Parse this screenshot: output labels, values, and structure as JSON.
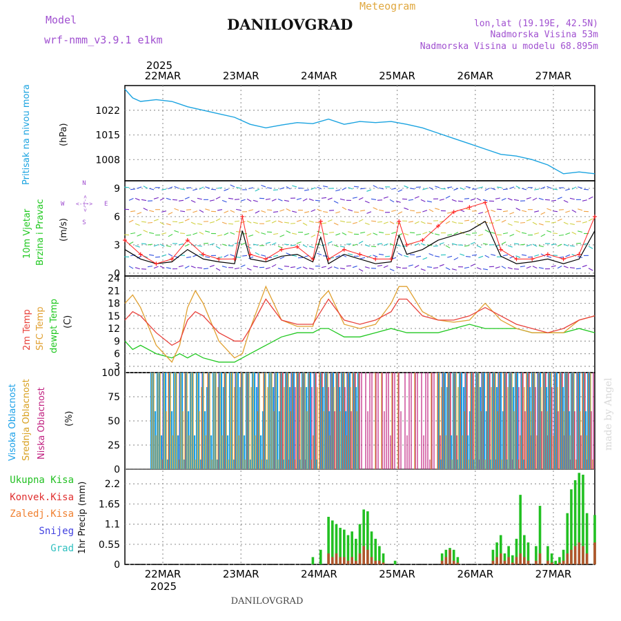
{
  "header": {
    "model_label": "Model",
    "model_name": "wrf-nmm_v3.9.1 e1km",
    "title": "DANILOVGRAD",
    "subtitle": "Meteogram",
    "coords": "lon,lat (19.19E, 42.5N)",
    "elevation": "Nadmorska Visina 53m",
    "model_elevation": "Nadmorska Visina u modelu 68.895m",
    "year_top": "2025",
    "year_bottom": "2025",
    "footer": "DANILOVGRAD",
    "watermark": "made by Angel"
  },
  "days": [
    "22MAR",
    "23MAR",
    "24MAR",
    "25MAR",
    "26MAR",
    "27MAR"
  ],
  "colors": {
    "pressure": "#1aa3e0",
    "wind_speed": "#000000",
    "gust": "#ff2020",
    "temp2m": "#e8403a",
    "sfc": "#e0a030",
    "dew": "#20c820",
    "cloud_high": "#1aa0e8",
    "cloud_mid": "#d8a020",
    "cloud_low": "#c02080",
    "precip_total": "#22c022",
    "precip_conv": "#e03030",
    "precip_frz": "#f08030",
    "precip_snow": "#4040e0",
    "precip_grad": "#30c0c0",
    "label_purple": "#a050d0",
    "label_orange": "#e0a840"
  },
  "panels": {
    "pressure": {
      "ylabel": "Pritisak na nivou mora",
      "unit": "(hPa)",
      "ticks": [
        "1022",
        "1015",
        "1008"
      ]
    },
    "wind": {
      "ylabel1": "10m Vjetar",
      "ylabel2": "Brzina i Pravac",
      "unit": "(m/s)",
      "ticks": [
        "0",
        "3",
        "6",
        "9"
      ],
      "compass_n": "N",
      "compass_s": "S",
      "compass_w": "W",
      "compass_e": "E",
      "compass_mid": "<-|->"
    },
    "temp": {
      "label_2m": "2m Temp",
      "label_sfc": "SFC Temp",
      "label_dew": "dewpt Temp",
      "unit": "(C)",
      "ticks": [
        "3",
        "6",
        "9",
        "12",
        "15",
        "18",
        "21",
        "24"
      ]
    },
    "cloud": {
      "label_high": "Visoka Oblacnost",
      "label_mid": "Srednja Oblacnost",
      "label_low": "Niska Oblacnost",
      "unit": "(%)",
      "ticks": [
        "0",
        "25",
        "50",
        "75",
        "100"
      ]
    },
    "precip": {
      "legend_total": "Ukupna Kisa",
      "legend_conv": "Konvek.Kisa",
      "legend_frz": "Zaledj.Kisa",
      "legend_snow": "Snijeg",
      "legend_grad": "Grad",
      "ylabel": "1hr Precip (mm)",
      "ticks": [
        "0",
        "0.55",
        "1.1",
        "1.65",
        "2.2"
      ]
    }
  },
  "chart_data": [
    {
      "type": "line",
      "title": "",
      "xlabel": "",
      "ylabel": "Pritisak na nivou mora (hPa)",
      "ylim": [
        1002,
        1029
      ],
      "x_days": [
        0,
        0.1,
        0.2,
        0.4,
        0.6,
        0.8,
        1.0,
        1.2,
        1.4,
        1.6,
        1.8,
        2.0,
        2.2,
        2.4,
        2.6,
        2.8,
        3.0,
        3.2,
        3.4,
        3.6,
        3.8,
        4.0,
        4.2,
        4.4,
        4.6,
        4.8,
        5.0,
        5.2,
        5.4,
        5.6,
        5.8,
        6.0
      ],
      "series": [
        {
          "values": [
            1028,
            1025.5,
            1024.5,
            1025,
            1024.5,
            1023,
            1022,
            1021,
            1020,
            1018,
            1017,
            1017.8,
            1018.5,
            1018.2,
            1019.5,
            1018,
            1018.8,
            1018.5,
            1018.8,
            1018,
            1017,
            1015.5,
            1014,
            1012.5,
            1011,
            1009.5,
            1009,
            1008,
            1006.5,
            1004,
            1004.5,
            1004
          ]
        }
      ]
    },
    {
      "type": "line",
      "title": "",
      "xlabel": "",
      "ylabel": "10m Vjetar Brzina i Pravac (m/s)",
      "ylim": [
        -0.3,
        9.8
      ],
      "x_days": [
        0,
        0.2,
        0.4,
        0.6,
        0.8,
        1.0,
        1.2,
        1.4,
        1.5,
        1.6,
        1.8,
        2.0,
        2.2,
        2.4,
        2.5,
        2.6,
        2.8,
        3.0,
        3.2,
        3.4,
        3.5,
        3.6,
        3.8,
        4.0,
        4.2,
        4.4,
        4.6,
        4.8,
        5.0,
        5.2,
        5.4,
        5.6,
        5.8,
        6.0
      ],
      "series": [
        {
          "name": "Brzina",
          "values": [
            2.5,
            1.5,
            1.0,
            1.2,
            2.5,
            1.5,
            1.2,
            1.0,
            4.5,
            1.5,
            1.2,
            1.8,
            2.0,
            1.2,
            3.8,
            1.0,
            2.0,
            1.5,
            1.0,
            1.2,
            4.0,
            2.0,
            2.5,
            3.5,
            4.0,
            4.5,
            5.5,
            1.8,
            1.0,
            1.2,
            1.5,
            1.0,
            1.5,
            4.5
          ]
        },
        {
          "name": "Udari",
          "values": [
            3.5,
            2.0,
            1.0,
            1.5,
            3.5,
            2.0,
            1.5,
            1.5,
            6.0,
            2.0,
            1.5,
            2.5,
            2.8,
            1.5,
            5.5,
            1.5,
            2.5,
            2.0,
            1.5,
            1.5,
            5.5,
            3.0,
            3.5,
            5.0,
            6.5,
            7.0,
            7.5,
            2.5,
            1.5,
            1.5,
            2.0,
            1.5,
            2.0,
            6.0
          ]
        }
      ]
    },
    {
      "type": "line",
      "title": "",
      "xlabel": "",
      "ylabel": "Temp (C)",
      "ylim": [
        1.5,
        24.5
      ],
      "x_days": [
        0,
        0.1,
        0.2,
        0.4,
        0.6,
        0.7,
        0.8,
        0.9,
        1.0,
        1.2,
        1.4,
        1.5,
        1.6,
        1.8,
        2.0,
        2.2,
        2.4,
        2.5,
        2.6,
        2.8,
        3.0,
        3.2,
        3.4,
        3.5,
        3.6,
        3.8,
        4.0,
        4.2,
        4.4,
        4.6,
        4.8,
        5.0,
        5.2,
        5.4,
        5.6,
        5.8,
        6.0
      ],
      "series": [
        {
          "name": "2m Temp",
          "values": [
            14,
            16,
            15,
            11,
            8,
            9,
            14,
            16,
            15,
            11,
            9,
            9,
            12,
            19,
            14,
            13,
            13,
            16,
            19,
            14,
            13,
            14,
            16,
            19,
            19,
            15,
            14,
            14,
            15,
            17,
            15,
            13,
            12,
            11,
            12,
            14,
            15
          ]
        },
        {
          "name": "SFC Temp",
          "values": [
            18,
            20,
            17,
            8,
            4,
            8,
            17,
            21,
            18,
            9,
            5,
            6,
            12,
            22,
            14,
            12.5,
            12.5,
            19,
            21,
            13,
            12,
            13,
            18,
            22,
            22,
            16,
            14,
            13.5,
            14,
            18,
            14,
            12,
            11,
            11,
            11,
            14,
            15
          ]
        },
        {
          "name": "dewpt Temp",
          "values": [
            9,
            7,
            8,
            6,
            5,
            6,
            5,
            6,
            5,
            4,
            4,
            5,
            6,
            8,
            10,
            11,
            11,
            12,
            12,
            10,
            10,
            11,
            12,
            11.5,
            11,
            11,
            11,
            12,
            13,
            12,
            12,
            12,
            11,
            11,
            11,
            12,
            11
          ]
        }
      ]
    },
    {
      "type": "bar",
      "title": "",
      "xlabel": "",
      "ylabel": "Oblacnost (%)",
      "ylim": [
        0,
        100
      ],
      "categories": [
        "22MAR",
        "23MAR",
        "24MAR",
        "25MAR",
        "26MAR",
        "27MAR"
      ],
      "series": [
        {
          "name": "Visoka Oblacnost",
          "values": [
            100,
            100,
            85,
            0,
            100,
            75
          ]
        },
        {
          "name": "Srednja Oblacnost",
          "values": [
            100,
            100,
            100,
            20,
            100,
            100
          ]
        },
        {
          "name": "Niska Oblacnost",
          "values": [
            20,
            25,
            80,
            80,
            70,
            100
          ]
        }
      ]
    },
    {
      "type": "bar",
      "title": "",
      "xlabel": "",
      "ylabel": "1hr Precip (mm)",
      "ylim": [
        0,
        2.6
      ],
      "x_days": [
        2.4,
        2.5,
        2.6,
        2.65,
        2.7,
        2.75,
        2.8,
        2.85,
        2.9,
        2.95,
        3.0,
        3.05,
        3.1,
        3.15,
        3.2,
        3.25,
        3.3,
        3.45,
        4.05,
        4.1,
        4.15,
        4.2,
        4.25,
        4.7,
        4.75,
        4.8,
        4.85,
        4.9,
        4.95,
        5.0,
        5.05,
        5.1,
        5.15,
        5.25,
        5.3,
        5.4,
        5.45,
        5.5,
        5.55,
        5.6,
        5.65,
        5.7,
        5.75,
        5.8,
        5.85,
        5.9,
        6.0
      ],
      "series": [
        {
          "name": "Ukupna Kisa",
          "values": [
            0.2,
            0.4,
            1.3,
            1.2,
            1.1,
            1.0,
            0.95,
            0.8,
            0.9,
            0.7,
            1.1,
            1.5,
            1.45,
            0.9,
            0.7,
            0.5,
            0.3,
            0.1,
            0.3,
            0.4,
            0.45,
            0.4,
            0.2,
            0.4,
            0.6,
            0.8,
            0.3,
            0.5,
            0.25,
            0.7,
            1.9,
            0.8,
            0.6,
            0.5,
            1.6,
            0.5,
            0.3,
            0.1,
            0.2,
            0.4,
            1.4,
            2.05,
            2.3,
            2.5,
            2.45,
            1.4,
            1.35
          ]
        },
        {
          "name": "Konvek.Kisa",
          "values": [
            0,
            0,
            0.3,
            0.2,
            0.3,
            0.2,
            0.2,
            0.1,
            0.2,
            0.1,
            0.3,
            0.5,
            0.4,
            0.2,
            0.1,
            0.1,
            0.05,
            0,
            0.1,
            0.2,
            0.4,
            0.1,
            0.05,
            0.1,
            0.2,
            0.3,
            0.1,
            0.2,
            0.05,
            0.2,
            0.3,
            0.2,
            0.1,
            0.1,
            0.3,
            0.1,
            0.05,
            0,
            0.05,
            0.1,
            0.3,
            0.4,
            0.5,
            0.6,
            0.5,
            0.3,
            0.6
          ]
        },
        {
          "name": "Zaledj.Kisa",
          "values": []
        },
        {
          "name": "Snijeg",
          "values": []
        },
        {
          "name": "Grad",
          "values": []
        }
      ]
    }
  ]
}
